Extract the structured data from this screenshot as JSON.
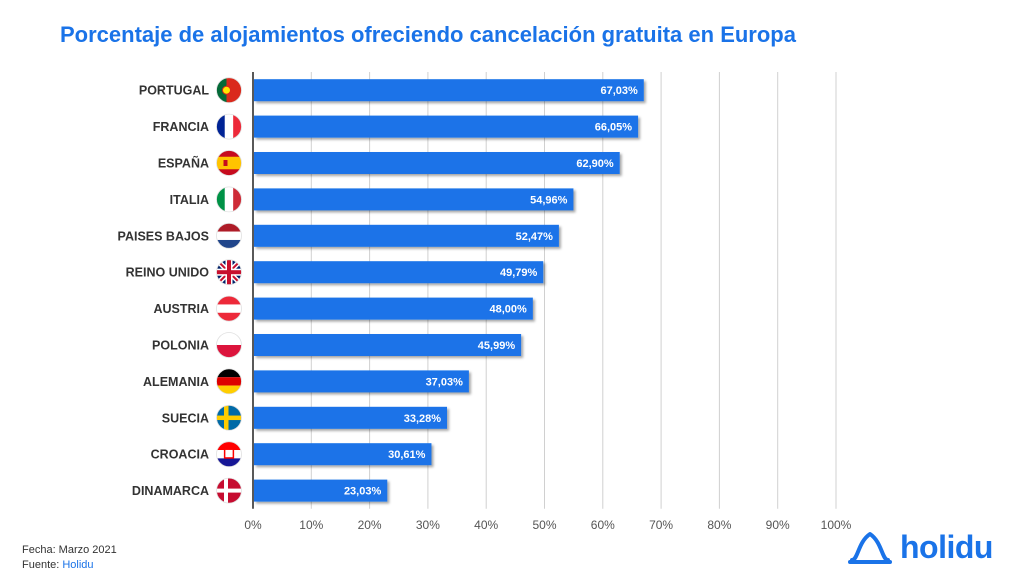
{
  "chart_data": {
    "type": "bar",
    "orientation": "horizontal",
    "title": "Porcentaje de alojamientos ofreciendo cancelación gratuita en Europa",
    "categories": [
      "PORTUGAL",
      "FRANCIA",
      "ESPAÑA",
      "ITALIA",
      "PAISES BAJOS",
      "REINO UNIDO",
      "AUSTRIA",
      "POLONIA",
      "ALEMANIA",
      "SUECIA",
      "CROACIA",
      "DINAMARCA"
    ],
    "values": [
      67.03,
      66.05,
      62.9,
      54.96,
      52.47,
      49.79,
      48.0,
      45.99,
      37.03,
      33.28,
      30.61,
      23.03
    ],
    "data_labels": [
      "67,03%",
      "66,05%",
      "62,90%",
      "54,96%",
      "52,47%",
      "49,79%",
      "48,00%",
      "45,99%",
      "37,03%",
      "33,28%",
      "30,61%",
      "23,03%"
    ],
    "xlim": [
      0,
      100
    ],
    "xticks": [
      0,
      10,
      20,
      30,
      40,
      50,
      60,
      70,
      80,
      90,
      100
    ],
    "xtick_labels": [
      "0%",
      "10%",
      "20%",
      "30%",
      "40%",
      "50%",
      "60%",
      "70%",
      "80%",
      "90%",
      "100%"
    ],
    "grid": "vertical",
    "legend": "none",
    "bar_color": "#1a73e8",
    "flags": [
      "portugal-flag-icon",
      "france-flag-icon",
      "spain-flag-icon",
      "italy-flag-icon",
      "netherlands-flag-icon",
      "uk-flag-icon",
      "austria-flag-icon",
      "poland-flag-icon",
      "germany-flag-icon",
      "sweden-flag-icon",
      "croatia-flag-icon",
      "denmark-flag-icon"
    ]
  },
  "footer": {
    "date_text": "Fecha: Marzo 2021",
    "source_prefix": "Fuente: ",
    "source_name": "Holidu"
  },
  "brand": {
    "name": "holidu",
    "icon": "house-logo-icon",
    "color": "#1a73e8"
  }
}
